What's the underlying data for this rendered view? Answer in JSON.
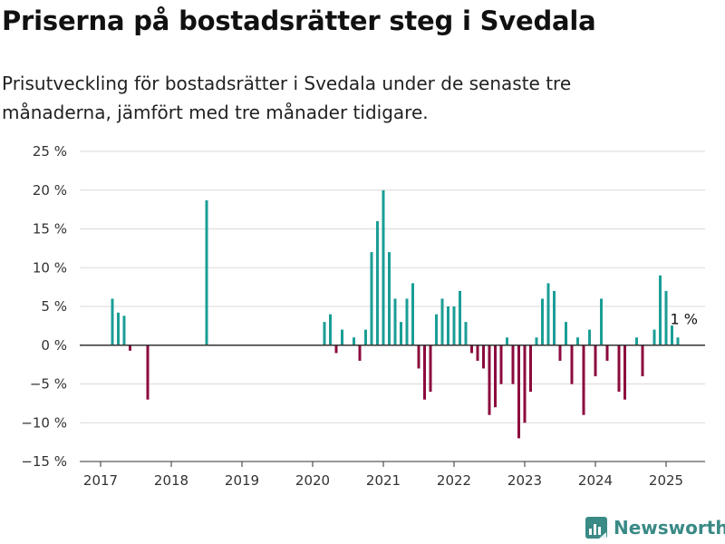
{
  "header": {
    "title": "Priserna på bostadsrätter steg i Svedala",
    "subtitle": "Prisutveckling för bostadsrätter i Svedala under de senaste tre månaderna, jämfört med tre månader tidigare."
  },
  "brand": {
    "name": "Newsworthy",
    "icon": "newsworthy-logo-icon"
  },
  "colors": {
    "positive": "#1a9e96",
    "negative": "#8c0a3e",
    "grid": "#d9d9d9",
    "zero_line": "#333333"
  },
  "chart_data": {
    "type": "bar",
    "ylim": [
      -15,
      25
    ],
    "y_ticks": [
      25,
      20,
      15,
      10,
      5,
      0,
      -5,
      -10,
      -15
    ],
    "y_tick_labels": [
      "25 %",
      "20 %",
      "15 %",
      "10 %",
      "5 %",
      "0 %",
      "−5 %",
      "−10 %",
      "−15 %"
    ],
    "x_ticks": [
      "2017",
      "2018",
      "2019",
      "2020",
      "2021",
      "2022",
      "2023",
      "2024",
      "2025"
    ],
    "grid": true,
    "annotation": {
      "text": "1 %",
      "date": "2025-02"
    },
    "series": [
      {
        "points": [
          {
            "date": "2017-03",
            "value": 6
          },
          {
            "date": "2017-04",
            "value": 4.2
          },
          {
            "date": "2017-05",
            "value": 3.8
          },
          {
            "date": "2017-06",
            "value": -0.7
          },
          {
            "date": "2017-09",
            "value": -7
          },
          {
            "date": "2018-07",
            "value": 18.7
          },
          {
            "date": "2020-03",
            "value": 3
          },
          {
            "date": "2020-04",
            "value": 4
          },
          {
            "date": "2020-05",
            "value": -1
          },
          {
            "date": "2020-06",
            "value": 2
          },
          {
            "date": "2020-08",
            "value": 1
          },
          {
            "date": "2020-09",
            "value": -2
          },
          {
            "date": "2020-10",
            "value": 2
          },
          {
            "date": "2020-11",
            "value": 12
          },
          {
            "date": "2020-12",
            "value": 16
          },
          {
            "date": "2021-01",
            "value": 20
          },
          {
            "date": "2021-02",
            "value": 12
          },
          {
            "date": "2021-03",
            "value": 6
          },
          {
            "date": "2021-04",
            "value": 3
          },
          {
            "date": "2021-05",
            "value": 6
          },
          {
            "date": "2021-06",
            "value": 8
          },
          {
            "date": "2021-07",
            "value": -3
          },
          {
            "date": "2021-08",
            "value": -7
          },
          {
            "date": "2021-09",
            "value": -6
          },
          {
            "date": "2021-10",
            "value": 4
          },
          {
            "date": "2021-11",
            "value": 6
          },
          {
            "date": "2021-12",
            "value": 5
          },
          {
            "date": "2022-01",
            "value": 5
          },
          {
            "date": "2022-02",
            "value": 7
          },
          {
            "date": "2022-03",
            "value": 3
          },
          {
            "date": "2022-04",
            "value": -1
          },
          {
            "date": "2022-05",
            "value": -2
          },
          {
            "date": "2022-06",
            "value": -3
          },
          {
            "date": "2022-07",
            "value": -9
          },
          {
            "date": "2022-08",
            "value": -8
          },
          {
            "date": "2022-09",
            "value": -5
          },
          {
            "date": "2022-10",
            "value": 1
          },
          {
            "date": "2022-11",
            "value": -5
          },
          {
            "date": "2022-12",
            "value": -12
          },
          {
            "date": "2023-01",
            "value": -10
          },
          {
            "date": "2023-02",
            "value": -6
          },
          {
            "date": "2023-03",
            "value": 1
          },
          {
            "date": "2023-04",
            "value": 6
          },
          {
            "date": "2023-05",
            "value": 8
          },
          {
            "date": "2023-06",
            "value": 7
          },
          {
            "date": "2023-07",
            "value": -2
          },
          {
            "date": "2023-08",
            "value": 3
          },
          {
            "date": "2023-09",
            "value": -5
          },
          {
            "date": "2023-10",
            "value": 1
          },
          {
            "date": "2023-11",
            "value": -9
          },
          {
            "date": "2023-12",
            "value": 2
          },
          {
            "date": "2024-01",
            "value": -4
          },
          {
            "date": "2024-02",
            "value": 6
          },
          {
            "date": "2024-03",
            "value": -2
          },
          {
            "date": "2024-05",
            "value": -6
          },
          {
            "date": "2024-06",
            "value": -7
          },
          {
            "date": "2024-08",
            "value": 1
          },
          {
            "date": "2024-09",
            "value": -4
          },
          {
            "date": "2024-11",
            "value": 2
          },
          {
            "date": "2024-12",
            "value": 9
          },
          {
            "date": "2025-01",
            "value": 7
          },
          {
            "date": "2025-02",
            "value": 3
          },
          {
            "date": "2025-03",
            "value": 1
          }
        ]
      }
    ]
  }
}
